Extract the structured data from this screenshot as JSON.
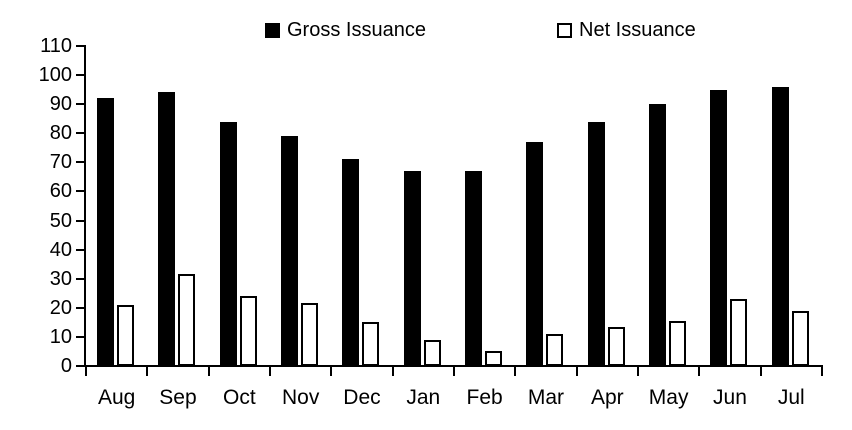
{
  "chart_data": {
    "type": "bar",
    "categories": [
      "Aug",
      "Sep",
      "Oct",
      "Nov",
      "Dec",
      "Jan",
      "Feb",
      "Mar",
      "Apr",
      "May",
      "Jun",
      "Jul"
    ],
    "series": [
      {
        "name": "Gross Issuance",
        "fill": "#000000",
        "stroke": "#000000",
        "values": [
          92,
          94,
          84,
          79,
          71,
          67,
          67,
          77,
          84,
          90,
          95,
          96
        ]
      },
      {
        "name": "Net Issuance",
        "fill": "#ffffff",
        "stroke": "#000000",
        "values": [
          21,
          31.5,
          24,
          21.5,
          15,
          9,
          5,
          11,
          13.5,
          15.5,
          23,
          19
        ]
      }
    ],
    "title": "",
    "xlabel": "",
    "ylabel": "",
    "ylim": [
      0,
      110
    ],
    "y_step": 10,
    "y_tick_labels": [
      "0",
      "10",
      "20",
      "30",
      "40",
      "50",
      "60",
      "70",
      "80",
      "90",
      "100",
      "110"
    ],
    "grid": false,
    "legend_position": "top",
    "axis_color": "#000000",
    "background_color": "#ffffff"
  }
}
